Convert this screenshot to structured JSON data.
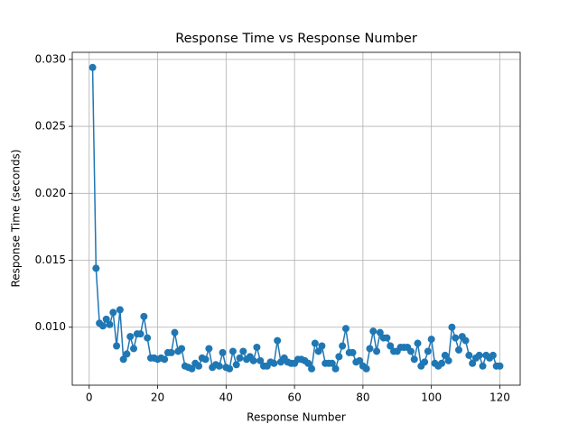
{
  "chart_data": {
    "type": "line",
    "title": "Response Time vs Response Number",
    "xlabel": "Response Number",
    "ylabel": "Response Time (seconds)",
    "x": [
      1,
      2,
      3,
      4,
      5,
      6,
      7,
      8,
      9,
      10,
      11,
      12,
      13,
      14,
      15,
      16,
      17,
      18,
      19,
      20,
      21,
      22,
      23,
      24,
      25,
      26,
      27,
      28,
      29,
      30,
      31,
      32,
      33,
      34,
      35,
      36,
      37,
      38,
      39,
      40,
      41,
      42,
      43,
      44,
      45,
      46,
      47,
      48,
      49,
      50,
      51,
      52,
      53,
      54,
      55,
      56,
      57,
      58,
      59,
      60,
      61,
      62,
      63,
      64,
      65,
      66,
      67,
      68,
      69,
      70,
      71,
      72,
      73,
      74,
      75,
      76,
      77,
      78,
      79,
      80,
      81,
      82,
      83,
      84,
      85,
      86,
      87,
      88,
      89,
      90,
      91,
      92,
      93,
      94,
      95,
      96,
      97,
      98,
      99,
      100,
      101,
      102,
      103,
      104,
      105,
      106,
      107,
      108,
      109,
      110,
      111,
      112,
      113,
      114,
      115,
      116,
      117,
      118,
      119,
      120
    ],
    "series": [
      {
        "name": "Response Time",
        "color": "#1f77b4",
        "values": [
          0.0294,
          0.0144,
          0.0103,
          0.0101,
          0.0106,
          0.0102,
          0.0111,
          0.0086,
          0.0113,
          0.0076,
          0.008,
          0.0093,
          0.0084,
          0.0095,
          0.0095,
          0.0108,
          0.0092,
          0.0077,
          0.0077,
          0.0076,
          0.0077,
          0.0076,
          0.0081,
          0.0081,
          0.0096,
          0.0082,
          0.0084,
          0.0071,
          0.007,
          0.0069,
          0.0073,
          0.0071,
          0.0077,
          0.0076,
          0.0084,
          0.007,
          0.0072,
          0.0071,
          0.0081,
          0.007,
          0.0069,
          0.0082,
          0.0072,
          0.0077,
          0.0082,
          0.0076,
          0.0078,
          0.0075,
          0.0085,
          0.0075,
          0.0071,
          0.0071,
          0.0074,
          0.0073,
          0.009,
          0.0074,
          0.0077,
          0.0074,
          0.0073,
          0.0073,
          0.0076,
          0.0076,
          0.0075,
          0.0073,
          0.0069,
          0.0088,
          0.0082,
          0.0086,
          0.0073,
          0.0073,
          0.0073,
          0.0069,
          0.0078,
          0.0086,
          0.0099,
          0.0081,
          0.0081,
          0.0074,
          0.0075,
          0.0071,
          0.0069,
          0.0084,
          0.0097,
          0.0082,
          0.0096,
          0.0092,
          0.0092,
          0.0086,
          0.0082,
          0.0082,
          0.0085,
          0.0085,
          0.0085,
          0.0082,
          0.0076,
          0.0088,
          0.0071,
          0.0074,
          0.0082,
          0.0091,
          0.0073,
          0.0071,
          0.0073,
          0.0079,
          0.0075,
          0.01,
          0.0092,
          0.0083,
          0.0093,
          0.009,
          0.0079,
          0.0073,
          0.0077,
          0.0079,
          0.0071,
          0.0079,
          0.0077,
          0.0079,
          0.0071,
          0.0071
        ]
      }
    ],
    "xlim": [
      -4.95,
      125.95
    ],
    "xticks": [
      0,
      20,
      40,
      60,
      80,
      100,
      120
    ],
    "ylim": [
      0.00567,
      0.03053
    ],
    "yticks": [
      {
        "value": 0.01,
        "label": "0.010"
      },
      {
        "value": 0.015,
        "label": "0.015"
      },
      {
        "value": 0.02,
        "label": "0.020"
      },
      {
        "value": 0.025,
        "label": "0.025"
      },
      {
        "value": 0.03,
        "label": "0.030"
      }
    ],
    "grid": true
  }
}
